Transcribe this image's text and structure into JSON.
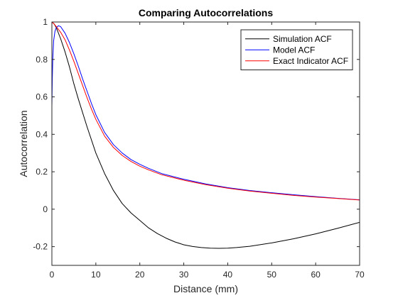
{
  "chart_data": {
    "type": "line",
    "title": "Comparing Autocorrelations",
    "xlabel": "Distance (mm)",
    "ylabel": "Autocorrelation",
    "xlim": [
      0,
      70
    ],
    "ylim": [
      -0.3,
      1
    ],
    "xticks": [
      0,
      10,
      20,
      30,
      40,
      50,
      60,
      70
    ],
    "yticks": [
      -0.2,
      0,
      0.2,
      0.4,
      0.6,
      0.8,
      1
    ],
    "xtick_labels": [
      "0",
      "10",
      "20",
      "30",
      "40",
      "50",
      "60",
      "70"
    ],
    "ytick_labels": [
      "-0.2",
      "0",
      "0.2",
      "0.4",
      "0.6",
      "0.8",
      "1"
    ],
    "grid": false,
    "legend_position": "top-right",
    "series": [
      {
        "name": "Simulation ACF",
        "color": "#000000",
        "x": [
          0,
          0.5,
          1,
          2,
          3,
          4,
          5,
          6,
          8,
          10,
          12,
          14,
          16,
          18,
          20,
          22,
          24,
          26,
          28,
          30,
          32,
          34,
          36,
          38,
          40,
          42,
          45,
          50,
          55,
          60,
          65,
          70
        ],
        "y": [
          1.0,
          0.99,
          0.97,
          0.91,
          0.84,
          0.76,
          0.67,
          0.59,
          0.44,
          0.3,
          0.19,
          0.1,
          0.03,
          -0.02,
          -0.06,
          -0.1,
          -0.13,
          -0.155,
          -0.175,
          -0.19,
          -0.199,
          -0.205,
          -0.208,
          -0.209,
          -0.208,
          -0.205,
          -0.198,
          -0.18,
          -0.158,
          -0.132,
          -0.102,
          -0.07
        ]
      },
      {
        "name": "Model ACF",
        "color": "#0000ff",
        "x": [
          0,
          0.1,
          0.2,
          0.4,
          0.7,
          1,
          1.5,
          2,
          3,
          4,
          5,
          6,
          7,
          8,
          9,
          10,
          12,
          14,
          16,
          18,
          20,
          22,
          25,
          30,
          35,
          40,
          45,
          50,
          55,
          60,
          65,
          70
        ],
        "y": [
          0.55,
          0.7,
          0.8,
          0.9,
          0.95,
          0.97,
          0.98,
          0.975,
          0.94,
          0.89,
          0.83,
          0.765,
          0.695,
          0.63,
          0.565,
          0.505,
          0.41,
          0.345,
          0.3,
          0.265,
          0.24,
          0.218,
          0.19,
          0.16,
          0.135,
          0.115,
          0.1,
          0.088,
          0.077,
          0.067,
          0.058,
          0.05
        ]
      },
      {
        "name": "Exact Indicator ACF",
        "color": "#ff0000",
        "x": [
          0,
          0.5,
          1,
          1.5,
          2,
          3,
          4,
          5,
          6,
          7,
          8,
          9,
          10,
          12,
          14,
          16,
          18,
          20,
          22,
          25,
          30,
          35,
          40,
          45,
          50,
          55,
          60,
          65,
          70
        ],
        "y": [
          1.0,
          0.99,
          0.975,
          0.96,
          0.945,
          0.905,
          0.85,
          0.79,
          0.725,
          0.66,
          0.595,
          0.535,
          0.48,
          0.39,
          0.33,
          0.287,
          0.255,
          0.23,
          0.21,
          0.184,
          0.155,
          0.131,
          0.112,
          0.097,
          0.085,
          0.074,
          0.065,
          0.057,
          0.049
        ]
      }
    ]
  }
}
